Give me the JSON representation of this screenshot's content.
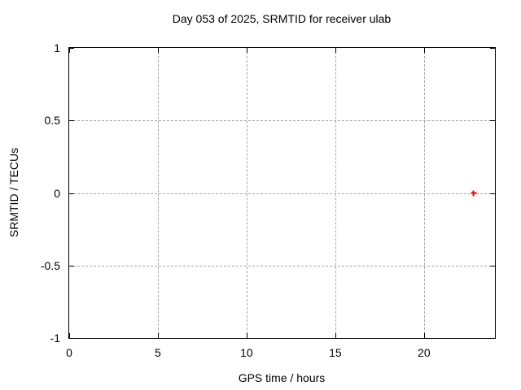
{
  "chart_data": {
    "type": "scatter",
    "title": "Day 053 of 2025, SRMTID for receiver ulab",
    "xlabel": "GPS time / hours",
    "ylabel": "SRMTID / TECUs",
    "xlim": [
      0,
      24
    ],
    "ylim": [
      -1,
      1
    ],
    "xticks": [
      0,
      5,
      10,
      15,
      20
    ],
    "xtick_labels": [
      "0",
      "5",
      "10",
      "15",
      "20"
    ],
    "yticks": [
      -1,
      -0.5,
      0,
      0.5,
      1
    ],
    "ytick_labels": [
      "-1",
      "-0.5",
      "0",
      "0.5",
      "1"
    ],
    "grid": "dashed",
    "legend_position": "none",
    "series": [
      {
        "name": "SRMTID",
        "marker": "plus",
        "color": "#ff0000",
        "points": [
          {
            "x": 22.8,
            "y": 0.0
          }
        ]
      }
    ],
    "colors": {
      "grid": "#a6a6a6",
      "axis": "#000000",
      "background": "#ffffff"
    }
  }
}
